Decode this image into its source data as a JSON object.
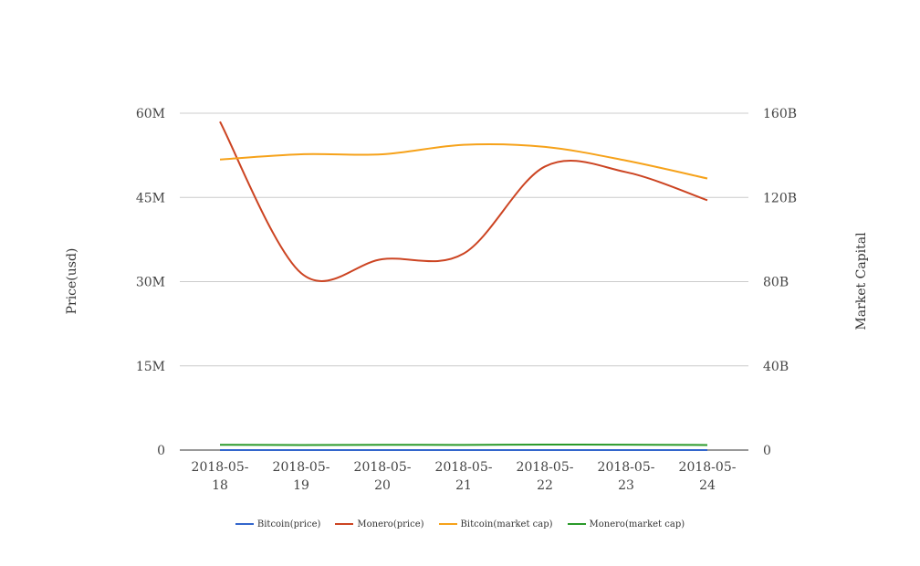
{
  "chart_data": {
    "type": "line",
    "categories": [
      "2018-05-18",
      "2018-05-19",
      "2018-05-20",
      "2018-05-21",
      "2018-05-22",
      "2018-05-23",
      "2018-05-24"
    ],
    "ylabel_left": "Price(usd)",
    "ylabel_right": "Market Capital",
    "ylim_left": [
      0,
      60000000
    ],
    "ylim_right": [
      0,
      160000000000
    ],
    "yticks_left": [
      "0",
      "15M",
      "30M",
      "45M",
      "60M"
    ],
    "yticks_right": [
      "0",
      "40B",
      "80B",
      "120B",
      "160B"
    ],
    "grid": true,
    "legend_position": "bottom",
    "series": [
      {
        "name": "Bitcoin(price)",
        "axis": "left",
        "color": "#3366cc",
        "values": [
          8200,
          8250,
          8500,
          8400,
          8380,
          7900,
          7600
        ]
      },
      {
        "name": "Monero(price)",
        "axis": "left",
        "color": "#cc4422",
        "values": [
          58500000,
          31500000,
          34000000,
          35000000,
          50500000,
          49500000,
          44500000
        ]
      },
      {
        "name": "Bitcoin(market cap)",
        "axis": "right",
        "color": "#f6a21a",
        "values": [
          138000000000,
          140500000000,
          140500000000,
          145000000000,
          144000000000,
          137500000000,
          129000000000
        ]
      },
      {
        "name": "Monero(market cap)",
        "axis": "right",
        "color": "#2a9a2a",
        "values": [
          2500000000,
          2400000000,
          2500000000,
          2450000000,
          2600000000,
          2550000000,
          2400000000
        ]
      }
    ]
  }
}
